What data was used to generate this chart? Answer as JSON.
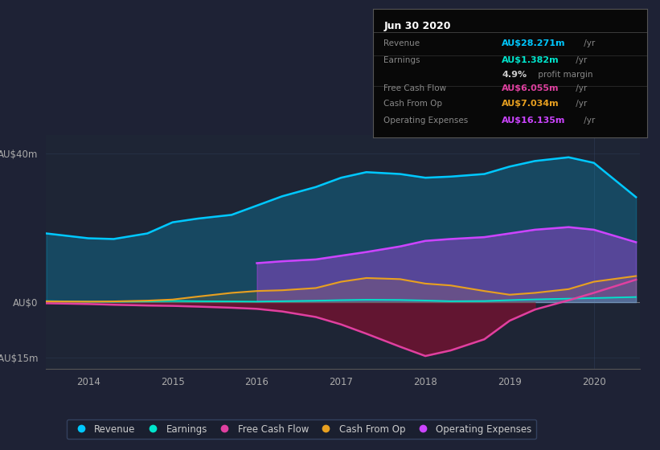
{
  "bg_color": "#1e2235",
  "plot_bg_color": "#1e2535",
  "years": [
    2013.5,
    2014.0,
    2014.3,
    2014.7,
    2015.0,
    2015.3,
    2015.7,
    2016.0,
    2016.3,
    2016.7,
    2017.0,
    2017.3,
    2017.7,
    2018.0,
    2018.3,
    2018.7,
    2019.0,
    2019.3,
    2019.7,
    2020.0,
    2020.5
  ],
  "revenue": [
    18.5,
    17.2,
    17.0,
    18.5,
    21.5,
    22.5,
    23.5,
    26.0,
    28.5,
    31.0,
    33.5,
    35.0,
    34.5,
    33.5,
    33.8,
    34.5,
    36.5,
    38.0,
    39.0,
    37.5,
    28.271
  ],
  "earnings": [
    0.3,
    0.15,
    0.1,
    0.2,
    0.35,
    0.25,
    0.2,
    0.15,
    0.25,
    0.4,
    0.55,
    0.65,
    0.6,
    0.45,
    0.25,
    0.3,
    0.55,
    0.75,
    0.95,
    1.1,
    1.382
  ],
  "free_cash_flow": [
    -0.3,
    -0.5,
    -0.7,
    -0.9,
    -1.0,
    -1.2,
    -1.5,
    -1.8,
    -2.5,
    -4.0,
    -6.0,
    -8.5,
    -12.0,
    -14.5,
    -13.0,
    -10.0,
    -5.0,
    -2.0,
    0.5,
    2.5,
    6.055
  ],
  "cash_from_op": [
    0.2,
    0.15,
    0.2,
    0.4,
    0.7,
    1.5,
    2.5,
    3.0,
    3.2,
    3.8,
    5.5,
    6.5,
    6.2,
    5.0,
    4.5,
    3.0,
    2.0,
    2.5,
    3.5,
    5.5,
    7.034
  ],
  "operating_expenses": [
    0.0,
    0.0,
    0.0,
    0.0,
    0.0,
    0.0,
    0.0,
    10.5,
    11.0,
    11.5,
    12.5,
    13.5,
    15.0,
    16.5,
    17.0,
    17.5,
    18.5,
    19.5,
    20.2,
    19.5,
    16.135
  ],
  "revenue_color": "#00c8ff",
  "earnings_color": "#00e5cc",
  "free_cash_flow_color": "#e040a0",
  "cash_from_op_color": "#e8a020",
  "operating_expenses_color": "#cc44ff",
  "ylim_top": 45,
  "ylim_bottom": -18,
  "yticks": [
    40,
    0,
    -15
  ],
  "ytick_labels": [
    "AU$40m",
    "AU$0",
    "-AU$15m"
  ],
  "xticks": [
    2014,
    2015,
    2016,
    2017,
    2018,
    2019,
    2020
  ],
  "legend_items": [
    "Revenue",
    "Earnings",
    "Free Cash Flow",
    "Cash From Op",
    "Operating Expenses"
  ],
  "legend_colors": [
    "#00c8ff",
    "#00e5cc",
    "#e040a0",
    "#e8a020",
    "#cc44ff"
  ],
  "info_box_title": "Jun 30 2020",
  "info_rows": [
    {
      "label": "Revenue",
      "value": "AU$28.271m",
      "unit": " /yr",
      "color": "#00c8ff"
    },
    {
      "label": "Earnings",
      "value": "AU$1.382m",
      "unit": " /yr",
      "color": "#00e5cc"
    },
    {
      "label": "",
      "value": "4.9%",
      "unit": " profit margin",
      "color": "#dddddd"
    },
    {
      "label": "Free Cash Flow",
      "value": "AU$6.055m",
      "unit": " /yr",
      "color": "#e040a0"
    },
    {
      "label": "Cash From Op",
      "value": "AU$7.034m",
      "unit": " /yr",
      "color": "#e8a020"
    },
    {
      "label": "Operating Expenses",
      "value": "AU$16.135m",
      "unit": " /yr",
      "color": "#cc44ff"
    }
  ]
}
